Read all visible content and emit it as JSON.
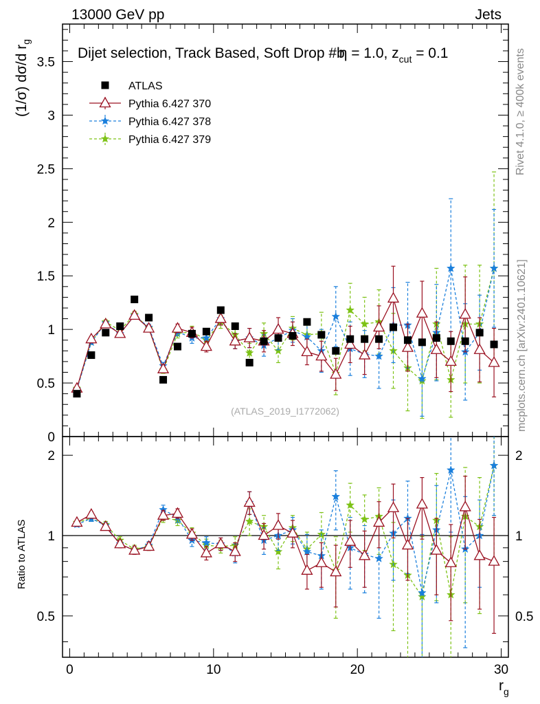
{
  "header": {
    "left": "13000 GeV pp",
    "right": "Jets",
    "title": "Dijet selection, Track Based, Soft Drop #b",
    "title_tail": "η = 1.0, z",
    "title_sub": "cut",
    "title_end": " = 0.1"
  },
  "side": {
    "rivet": "Rivet 4.1.0, ≥ 400k events",
    "mcplots": "mcplots.cern.ch [arXiv:2401.10621]"
  },
  "watermark": "(ATLAS_2019_I1772062)",
  "colors": {
    "data": "#000000",
    "p370": "#9a1020",
    "p378": "#1a7fdc",
    "p379": "#7dc216"
  },
  "chart_data": [
    {
      "type": "scatter",
      "title": "Dijet selection, Track Based, Soft Drop #b η = 1.0, z_cut = 0.1",
      "xlabel": "r_g",
      "ylabel": "(1/σ) dσ/d r_g",
      "xlabel_main": "r",
      "xlabel_sub": "g",
      "ylabel_main": "(1/σ) dσ/d r",
      "ylabel_sub": "g",
      "xlim": [
        -0.5,
        30.5
      ],
      "ylim": [
        0,
        3.85
      ],
      "xticks": [
        0,
        10,
        20,
        30
      ],
      "xticklabels": [
        "0",
        "10",
        "20",
        "30"
      ],
      "yticks": [
        0,
        0.5,
        1,
        1.5,
        2,
        2.5,
        3,
        3.5
      ],
      "yticklabels": [
        "0",
        "0.5",
        "1",
        "1.5",
        "2",
        "2.5",
        "3",
        "3.5"
      ],
      "legend": [
        {
          "label": "ATLAS",
          "key": "data"
        },
        {
          "label": "Pythia 6.427 370",
          "key": "p370"
        },
        {
          "label": "Pythia 6.427 378",
          "key": "p378"
        },
        {
          "label": "Pythia 6.427 379",
          "key": "p379"
        }
      ],
      "x": [
        0.5,
        1.5,
        2.5,
        3.5,
        4.5,
        5.5,
        6.5,
        7.5,
        8.5,
        9.5,
        10.5,
        11.5,
        12.5,
        13.5,
        14.5,
        15.5,
        16.5,
        17.5,
        18.5,
        19.5,
        20.5,
        21.5,
        22.5,
        23.5,
        24.5,
        25.5,
        26.5,
        27.5,
        28.5,
        29.5
      ],
      "series": [
        {
          "name": "ATLAS",
          "key": "data",
          "marker": "square",
          "values": [
            0.4,
            0.76,
            0.97,
            1.03,
            1.28,
            1.11,
            0.53,
            0.84,
            0.96,
            0.98,
            1.18,
            1.03,
            0.69,
            0.89,
            0.92,
            0.94,
            1.07,
            0.95,
            0.8,
            0.91,
            0.91,
            0.91,
            1.02,
            0.9,
            0.88,
            0.92,
            0.89,
            0.89,
            0.97,
            0.86
          ],
          "errors": [
            0.01,
            0.01,
            0.01,
            0.01,
            0.01,
            0.01,
            0.01,
            0.01,
            0.01,
            0.01,
            0.01,
            0.01,
            0.01,
            0.01,
            0.01,
            0.01,
            0.01,
            0.01,
            0.01,
            0.01,
            0.01,
            0.01,
            0.01,
            0.01,
            0.01,
            0.01,
            0.01,
            0.01,
            0.01,
            0.01
          ]
        },
        {
          "name": "Pythia 6.427 370",
          "key": "p370",
          "marker": "triangle",
          "dash": false,
          "values": [
            0.45,
            0.91,
            1.05,
            0.96,
            1.13,
            1.01,
            0.63,
            1.01,
            0.97,
            0.84,
            1.1,
            0.89,
            0.92,
            0.89,
            1.0,
            0.96,
            0.79,
            0.75,
            0.58,
            0.86,
            0.76,
            1.02,
            1.29,
            0.83,
            1.15,
            0.81,
            0.7,
            1.14,
            0.81,
            0.69
          ],
          "errors": [
            0.01,
            0.02,
            0.02,
            0.02,
            0.03,
            0.03,
            0.03,
            0.04,
            0.05,
            0.05,
            0.06,
            0.07,
            0.09,
            0.1,
            0.11,
            0.11,
            0.12,
            0.14,
            0.15,
            0.17,
            0.18,
            0.2,
            0.3,
            0.22,
            0.3,
            0.26,
            0.28,
            0.35,
            0.3,
            0.32
          ]
        },
        {
          "name": "Pythia 6.427 378",
          "key": "p378",
          "marker": "star",
          "dash": true,
          "values": [
            0.44,
            0.88,
            1.06,
            0.96,
            1.13,
            1.02,
            0.66,
            0.98,
            0.92,
            0.92,
            1.1,
            0.89,
            0.92,
            0.85,
            0.92,
            0.99,
            0.93,
            0.8,
            1.12,
            0.82,
            0.77,
            0.75,
            1.04,
            1.04,
            0.54,
            0.97,
            1.57,
            0.79,
            0.97,
            1.57
          ],
          "errors": [
            0.01,
            0.02,
            0.02,
            0.02,
            0.03,
            0.03,
            0.03,
            0.04,
            0.05,
            0.05,
            0.06,
            0.07,
            0.09,
            0.1,
            0.11,
            0.11,
            0.15,
            0.2,
            0.28,
            0.25,
            0.22,
            0.3,
            0.35,
            0.4,
            0.35,
            0.45,
            0.65,
            0.45,
            0.35,
            0.55
          ]
        },
        {
          "name": "Pythia 6.427 379",
          "key": "p379",
          "marker": "star",
          "dash": true,
          "values": [
            0.45,
            0.88,
            1.07,
            0.99,
            1.14,
            1.01,
            0.62,
            0.96,
            0.98,
            0.9,
            1.07,
            0.95,
            0.78,
            0.96,
            0.8,
            1.01,
            0.95,
            0.96,
            0.59,
            1.18,
            1.05,
            1.07,
            0.8,
            0.64,
            0.52,
            1.05,
            0.53,
            1.05,
            1.05,
            1.57
          ],
          "errors": [
            0.01,
            0.02,
            0.02,
            0.02,
            0.03,
            0.03,
            0.03,
            0.04,
            0.05,
            0.05,
            0.06,
            0.07,
            0.09,
            0.1,
            0.11,
            0.11,
            0.15,
            0.2,
            0.2,
            0.25,
            0.25,
            0.3,
            0.35,
            0.4,
            0.35,
            0.52,
            0.35,
            0.55,
            0.55,
            0.9
          ]
        }
      ]
    },
    {
      "type": "scatter",
      "title": "Ratio to ATLAS",
      "xlabel": "r_g",
      "ylabel": "Ratio to ATLAS",
      "ylim": [
        0.35,
        2.35
      ],
      "yscale": "log",
      "yticks": [
        0.5,
        1,
        2
      ],
      "yticklabels": [
        "0.5",
        "1",
        "2"
      ],
      "reference_line": 1,
      "x": [
        0.5,
        1.5,
        2.5,
        3.5,
        4.5,
        5.5,
        6.5,
        7.5,
        8.5,
        9.5,
        10.5,
        11.5,
        12.5,
        13.5,
        14.5,
        15.5,
        16.5,
        17.5,
        18.5,
        19.5,
        20.5,
        21.5,
        22.5,
        23.5,
        24.5,
        25.5,
        26.5,
        27.5,
        28.5,
        29.5
      ],
      "series": [
        {
          "name": "Pythia 6.427 370",
          "key": "p370",
          "values": [
            1.12,
            1.2,
            1.08,
            0.93,
            0.88,
            0.91,
            1.19,
            1.21,
            1.01,
            0.86,
            0.93,
            0.87,
            1.33,
            1.0,
            1.09,
            1.02,
            0.74,
            0.79,
            0.73,
            0.95,
            0.84,
            1.12,
            1.27,
            0.92,
            1.31,
            0.88,
            0.79,
            1.28,
            0.84,
            0.8
          ],
          "errors": [
            0.02,
            0.03,
            0.03,
            0.03,
            0.03,
            0.03,
            0.05,
            0.05,
            0.05,
            0.05,
            0.05,
            0.07,
            0.13,
            0.11,
            0.12,
            0.12,
            0.11,
            0.15,
            0.19,
            0.19,
            0.2,
            0.22,
            0.29,
            0.24,
            0.34,
            0.28,
            0.31,
            0.39,
            0.31,
            0.37
          ]
        },
        {
          "name": "Pythia 6.427 378",
          "key": "p378",
          "values": [
            1.1,
            1.16,
            1.09,
            0.93,
            0.88,
            0.92,
            1.25,
            1.17,
            0.96,
            0.94,
            0.93,
            0.86,
            1.33,
            0.96,
            1.0,
            1.05,
            0.87,
            0.84,
            1.4,
            0.9,
            0.85,
            0.82,
            1.02,
            1.16,
            0.61,
            1.05,
            1.76,
            0.89,
            1.0,
            1.83
          ],
          "errors": [
            0.02,
            0.03,
            0.03,
            0.03,
            0.03,
            0.03,
            0.05,
            0.05,
            0.05,
            0.05,
            0.05,
            0.07,
            0.13,
            0.11,
            0.12,
            0.12,
            0.14,
            0.21,
            0.35,
            0.27,
            0.24,
            0.33,
            0.34,
            0.44,
            0.4,
            0.49,
            0.73,
            0.51,
            0.36,
            0.64
          ]
        },
        {
          "name": "Pythia 6.427 379",
          "key": "p379",
          "values": [
            1.12,
            1.16,
            1.1,
            0.96,
            0.89,
            0.91,
            1.17,
            1.14,
            1.02,
            0.92,
            0.91,
            0.92,
            1.13,
            1.08,
            0.87,
            1.07,
            0.89,
            1.01,
            0.74,
            1.3,
            1.15,
            1.18,
            0.78,
            0.71,
            0.59,
            1.14,
            0.6,
            1.18,
            1.08,
            1.83
          ],
          "errors": [
            0.02,
            0.03,
            0.03,
            0.03,
            0.03,
            0.03,
            0.05,
            0.05,
            0.05,
            0.05,
            0.05,
            0.07,
            0.13,
            0.11,
            0.12,
            0.12,
            0.14,
            0.21,
            0.25,
            0.27,
            0.27,
            0.33,
            0.34,
            0.44,
            0.4,
            0.57,
            0.39,
            0.62,
            0.57,
            1.05
          ]
        }
      ]
    }
  ]
}
